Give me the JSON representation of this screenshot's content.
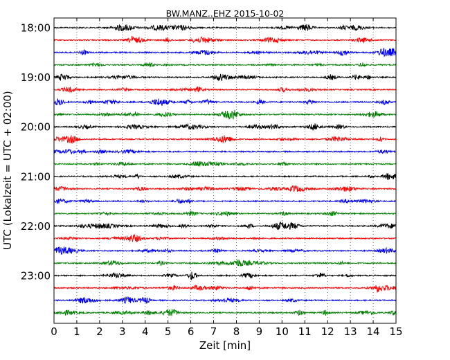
{
  "chart_data": {
    "type": "line",
    "title": "BW.MANZ..EHZ 2015-10-02",
    "xlabel": "Zeit  [min]",
    "ylabel": "UTC (Lokalzeit = UTC + 02:00)",
    "xlim": [
      0,
      15
    ],
    "x_ticks": [
      0,
      1,
      2,
      3,
      4,
      5,
      6,
      7,
      8,
      9,
      10,
      11,
      12,
      13,
      14,
      15
    ],
    "y_ticks": [
      "18:00",
      "19:00",
      "20:00",
      "21:00",
      "22:00",
      "23:00"
    ],
    "grid": "vertical dotted",
    "trace_start_times": [
      "18:00",
      "18:15",
      "18:30",
      "18:45",
      "19:00",
      "19:15",
      "19:30",
      "19:45",
      "20:00",
      "20:15",
      "20:30",
      "20:45",
      "21:00",
      "21:15",
      "21:30",
      "21:45",
      "22:00",
      "22:15",
      "22:30",
      "22:45",
      "23:00",
      "23:15",
      "23:30",
      "23:45"
    ],
    "trace_colors": [
      "#000000",
      "#ff0000",
      "#0000ff",
      "#007f00"
    ]
  }
}
